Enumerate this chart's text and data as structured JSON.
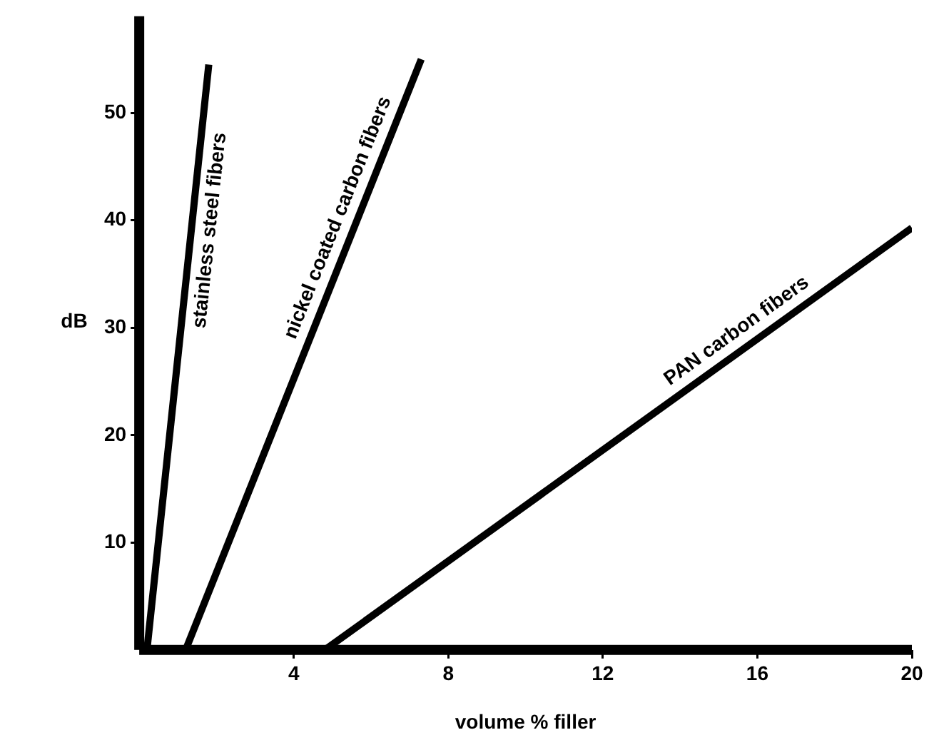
{
  "chart_data": {
    "type": "line",
    "xlabel": "volume % filler",
    "ylabel": "dB",
    "xlim": [
      0,
      20
    ],
    "xticks": [
      4,
      8,
      12,
      16,
      20
    ],
    "ylim": [
      0,
      59
    ],
    "yticks": [
      10,
      20,
      30,
      40,
      50
    ],
    "grid": false,
    "legend": false,
    "marker": "none",
    "line_style": "solid",
    "series": [
      {
        "name": "stainless steel fibers",
        "color": "#000000",
        "x": [
          0.2,
          1.8
        ],
        "values": [
          0,
          54.5
        ]
      },
      {
        "name": "nickel coated carbon fibers",
        "color": "#000000",
        "x": [
          1.2,
          7.3
        ],
        "values": [
          0,
          55
        ]
      },
      {
        "name": "PAN carbon fibers",
        "color": "#000000",
        "x": [
          4.8,
          20
        ],
        "values": [
          0,
          39.3
        ]
      }
    ]
  }
}
